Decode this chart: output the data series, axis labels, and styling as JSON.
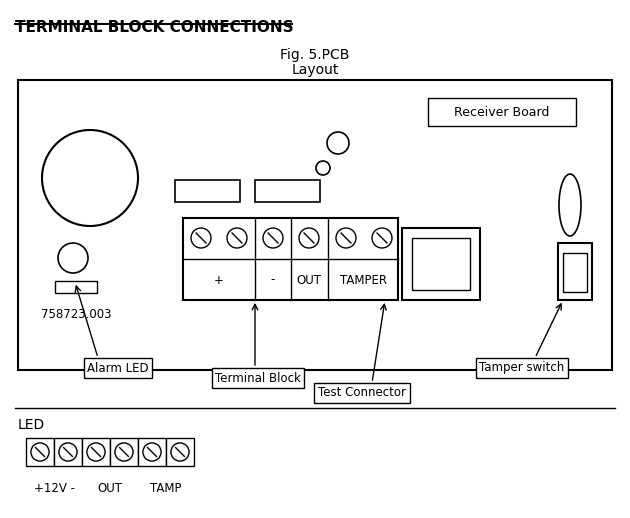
{
  "title": "TERMINAL BLOCK CONNECTIONS",
  "subtitle1": "Fig. 5.PCB",
  "subtitle2": "Layout",
  "receiver_board_label": "Receiver Board",
  "alarm_led_label": "Alarm LED",
  "terminal_block_label": "Terminal Block",
  "test_connector_label": "Test Connector",
  "tamper_switch_label": "Tamper switch",
  "part_number": "758723.003",
  "led_label": "LED",
  "led_sublabels": [
    "+12V -",
    "OUT",
    "TAMP"
  ],
  "tb_labels": [
    "+",
    "-",
    "OUT",
    "TAMPER"
  ],
  "bg_color": "#ffffff",
  "fg_color": "#000000"
}
